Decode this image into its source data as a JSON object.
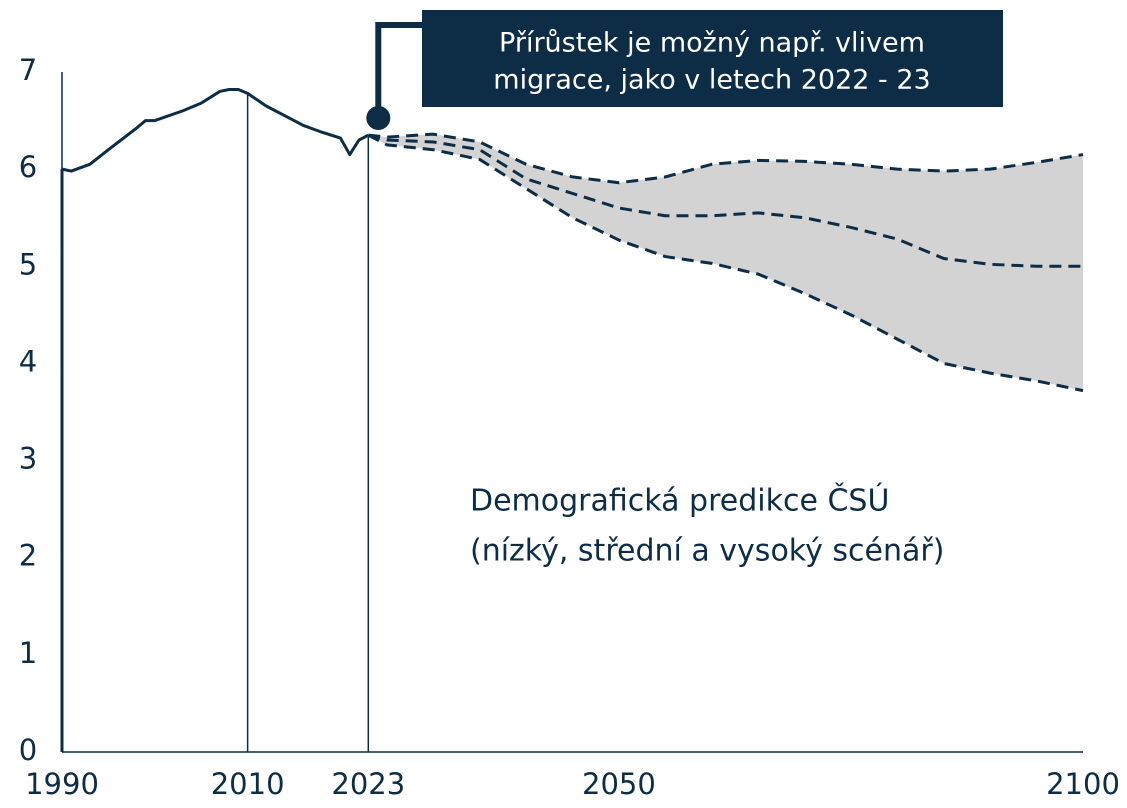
{
  "chart_data": {
    "type": "line",
    "xlim": [
      1990,
      2100
    ],
    "ylim": [
      0,
      7
    ],
    "xticks": [
      1990,
      2010,
      2023,
      2050,
      2100
    ],
    "yticks": [
      0,
      1,
      2,
      3,
      4,
      5,
      6,
      7
    ],
    "series": [
      {
        "color": "#0d2c45",
        "style": "solid",
        "x": [
          1990,
          1991,
          1993,
          1995,
          1998,
          1999,
          2000,
          2003,
          2005,
          2007,
          2008,
          2009,
          2010,
          2012,
          2014,
          2016,
          2018,
          2020,
          2021,
          2022,
          2023
        ],
        "values": [
          6.0,
          5.98,
          6.05,
          6.2,
          6.42,
          6.5,
          6.5,
          6.6,
          6.68,
          6.8,
          6.82,
          6.82,
          6.78,
          6.65,
          6.55,
          6.45,
          6.38,
          6.32,
          6.15,
          6.3,
          6.35
        ]
      },
      {
        "color": "#0d2c45",
        "style": "dashed",
        "x": [
          2023,
          2025,
          2030,
          2035,
          2040,
          2045,
          2050,
          2055,
          2060,
          2065,
          2070,
          2075,
          2080,
          2085,
          2090,
          2095,
          2100
        ],
        "values": [
          6.35,
          6.33,
          6.36,
          6.28,
          6.05,
          5.92,
          5.86,
          5.92,
          6.05,
          6.09,
          6.08,
          6.05,
          6.0,
          5.98,
          6.0,
          6.07,
          6.15
        ]
      },
      {
        "color": "#0d2c45",
        "style": "dashed",
        "x": [
          2023,
          2025,
          2030,
          2035,
          2040,
          2045,
          2050,
          2055,
          2060,
          2065,
          2070,
          2075,
          2080,
          2085,
          2090,
          2095,
          2100
        ],
        "values": [
          6.35,
          6.3,
          6.28,
          6.2,
          5.9,
          5.75,
          5.6,
          5.52,
          5.52,
          5.55,
          5.5,
          5.4,
          5.28,
          5.08,
          5.02,
          5.0,
          5.0
        ]
      },
      {
        "color": "#0d2c45",
        "style": "dashed",
        "x": [
          2023,
          2025,
          2030,
          2035,
          2040,
          2045,
          2050,
          2055,
          2060,
          2065,
          2070,
          2075,
          2080,
          2085,
          2090,
          2095,
          2100
        ],
        "values": [
          6.35,
          6.25,
          6.2,
          6.1,
          5.8,
          5.5,
          5.27,
          5.1,
          5.03,
          4.92,
          4.72,
          4.5,
          4.25,
          4.0,
          3.9,
          3.82,
          3.72
        ]
      }
    ],
    "band": {
      "color": "#d3d3d3",
      "between": [
        1,
        3
      ]
    },
    "annotation": {
      "lines": [
        "Přírůstek je možný např. vlivem",
        "migrace, jako v letech 2022 - 23"
      ],
      "color": "#0d2c45"
    },
    "note": {
      "lines": [
        "Demografická predikce ČSÚ",
        "(nízký, střední a vysoký scénář)"
      ]
    }
  }
}
